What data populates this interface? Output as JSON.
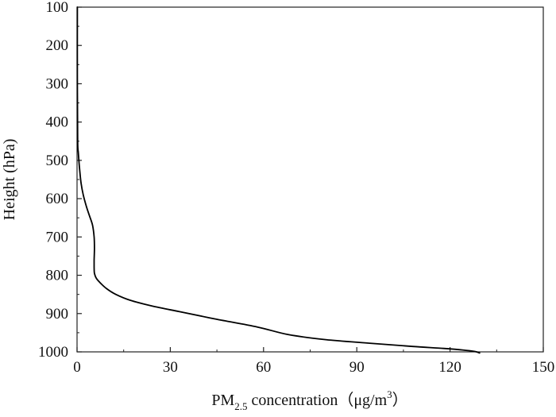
{
  "chart_data": {
    "type": "line",
    "title": "",
    "xlabel": {
      "main": "PM",
      "subscript": "2.5",
      "rest": " concentration（μg/m",
      "superscript": "3",
      "close": "）"
    },
    "ylabel": "Height (hPa)",
    "xlim": [
      0,
      150
    ],
    "ylim": [
      100,
      1000
    ],
    "y_inverted": true,
    "xticks": [
      "0",
      "30",
      "60",
      "90",
      "120",
      "150"
    ],
    "yticks": [
      "100",
      "200",
      "300",
      "400",
      "500",
      "600",
      "700",
      "800",
      "900",
      "1000"
    ],
    "grid": false,
    "series": [
      {
        "name": "",
        "color": "#000000",
        "x": [
          0.1,
          0.1,
          0.2,
          0.4,
          0.8,
          1.3,
          2.0,
          3.0,
          4.0,
          5.0,
          5.5,
          5.6,
          5.5,
          5.5,
          5.6,
          6.2,
          7.5,
          9.5,
          12.5,
          17.0,
          24.0,
          33.0,
          45.0,
          58.0,
          68.0,
          80.0,
          95.0,
          108.0,
          118.0,
          124.0,
          128.0,
          129.5
        ],
        "y": [
          100,
          300,
          450,
          480,
          520,
          560,
          590,
          620,
          645,
          670,
          700,
          730,
          760,
          780,
          795,
          808,
          820,
          835,
          850,
          865,
          880,
          895,
          915,
          935,
          955,
          968,
          978,
          986,
          991,
          995,
          999,
          1003
        ]
      }
    ]
  }
}
